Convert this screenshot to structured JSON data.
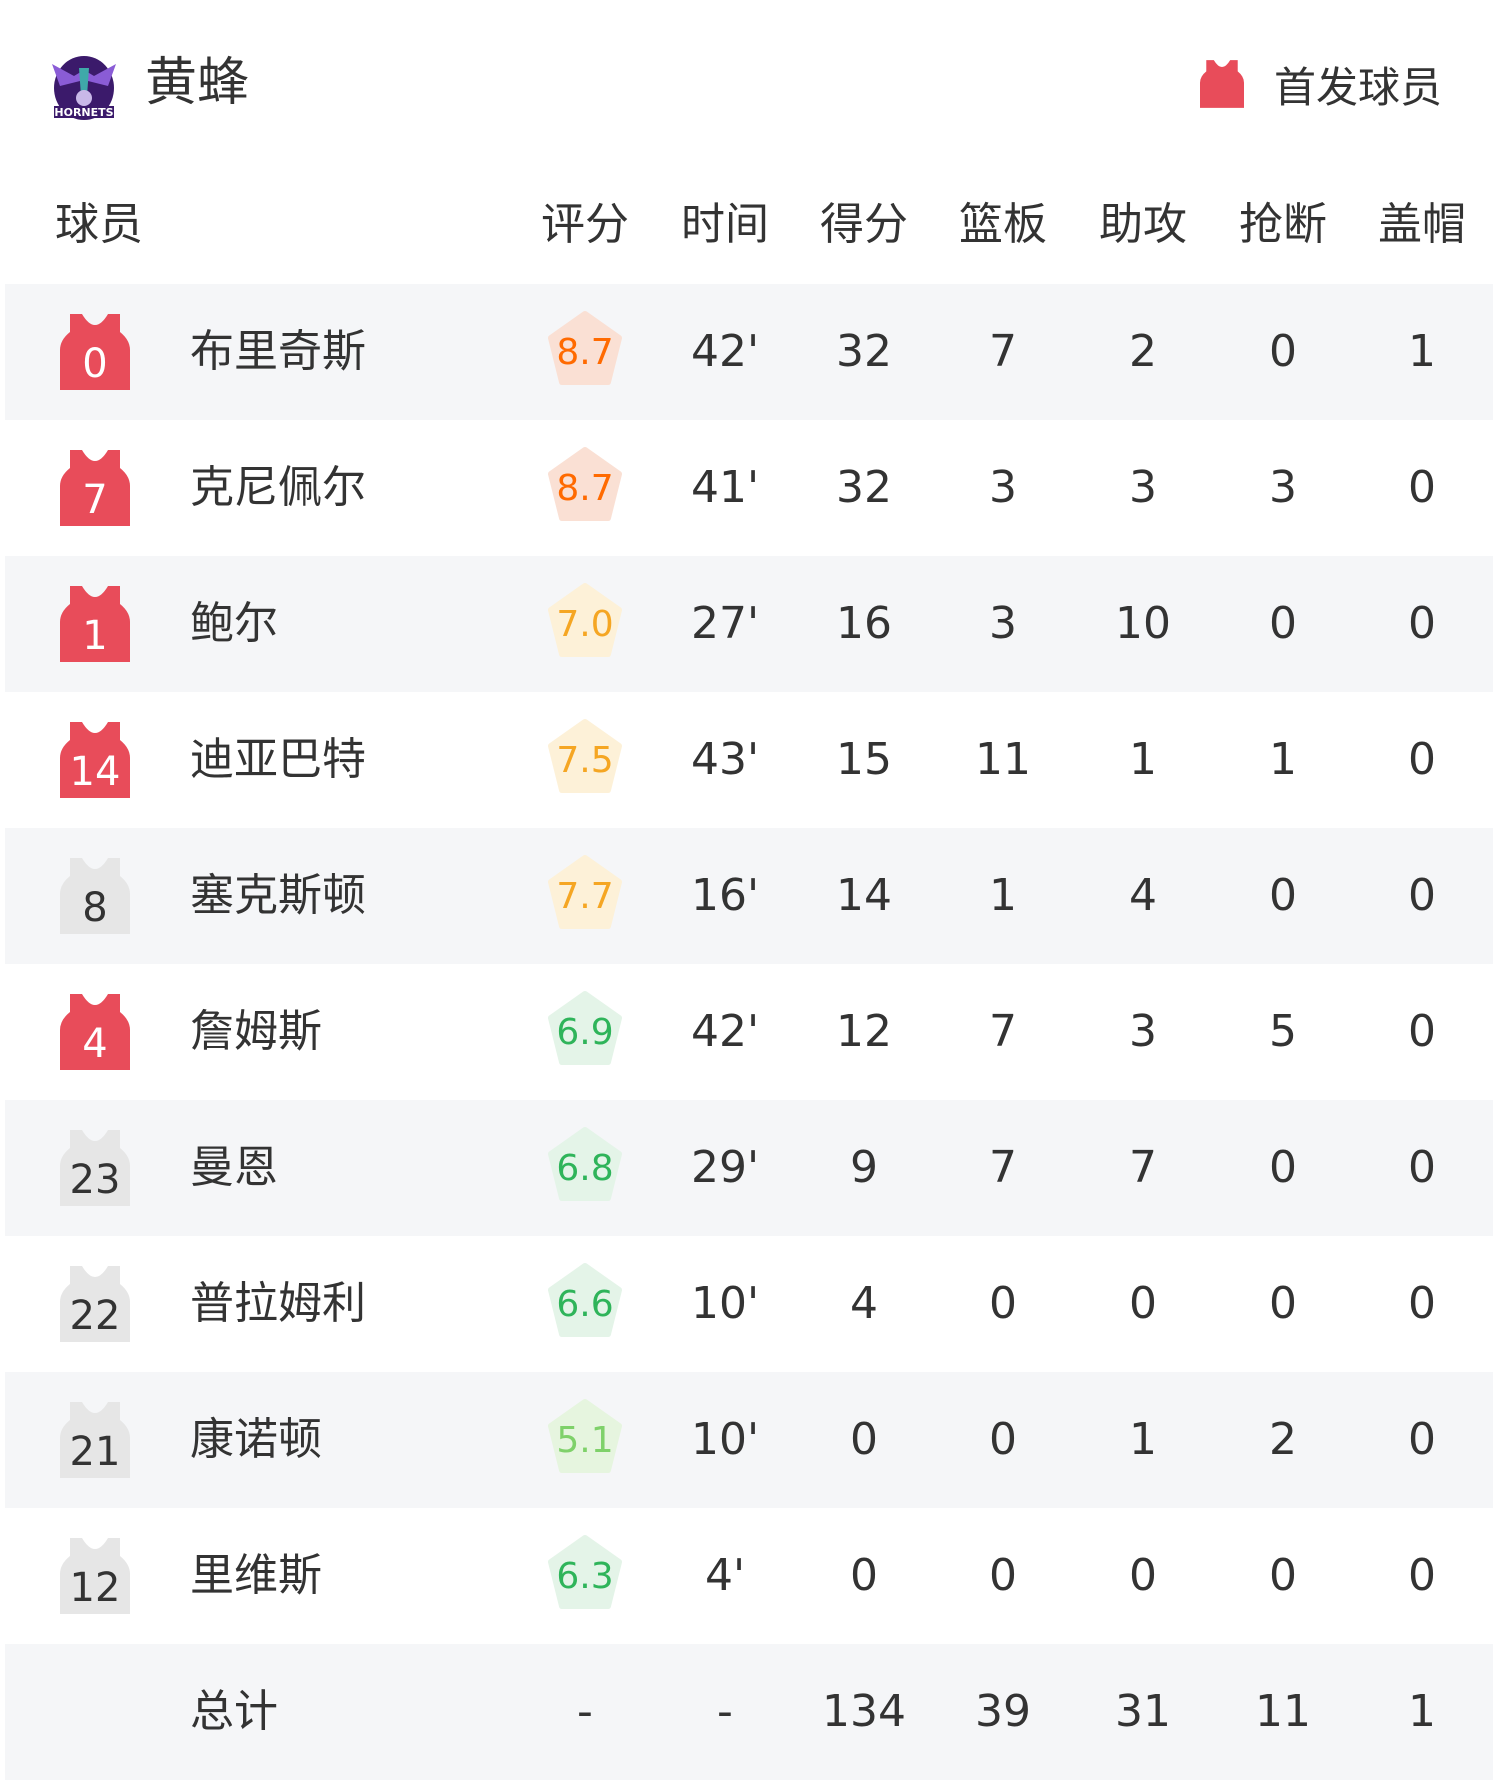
{
  "team": {
    "name": "黄蜂",
    "logo_text": "HORNETS"
  },
  "legend": {
    "label": "首发球员",
    "color": "#e84c5a"
  },
  "columns": [
    "球员",
    "评分",
    "时间",
    "得分",
    "篮板",
    "助攻",
    "抢断",
    "盖帽"
  ],
  "colors": {
    "starter": "#e84c5a",
    "bench": "#e6e6e6"
  },
  "players": [
    {
      "number": "0",
      "name": "布里奇斯",
      "starter": true,
      "rating": "8.7",
      "tier": "orange",
      "min": "42'",
      "pts": "32",
      "reb": "7",
      "ast": "2",
      "stl": "0",
      "blk": "1"
    },
    {
      "number": "7",
      "name": "克尼佩尔",
      "starter": true,
      "rating": "8.7",
      "tier": "orange",
      "min": "41'",
      "pts": "32",
      "reb": "3",
      "ast": "3",
      "stl": "3",
      "blk": "0"
    },
    {
      "number": "1",
      "name": "鲍尔",
      "starter": true,
      "rating": "7.0",
      "tier": "yellow",
      "min": "27'",
      "pts": "16",
      "reb": "3",
      "ast": "10",
      "stl": "0",
      "blk": "0"
    },
    {
      "number": "14",
      "name": "迪亚巴特",
      "starter": true,
      "rating": "7.5",
      "tier": "yellow",
      "min": "43'",
      "pts": "15",
      "reb": "11",
      "ast": "1",
      "stl": "1",
      "blk": "0"
    },
    {
      "number": "8",
      "name": "塞克斯顿",
      "starter": false,
      "rating": "7.7",
      "tier": "yellow",
      "min": "16'",
      "pts": "14",
      "reb": "1",
      "ast": "4",
      "stl": "0",
      "blk": "0"
    },
    {
      "number": "4",
      "name": "詹姆斯",
      "starter": true,
      "rating": "6.9",
      "tier": "green",
      "min": "42'",
      "pts": "12",
      "reb": "7",
      "ast": "3",
      "stl": "5",
      "blk": "0"
    },
    {
      "number": "23",
      "name": "曼恩",
      "starter": false,
      "rating": "6.8",
      "tier": "green",
      "min": "29'",
      "pts": "9",
      "reb": "7",
      "ast": "7",
      "stl": "0",
      "blk": "0"
    },
    {
      "number": "22",
      "name": "普拉姆利",
      "starter": false,
      "rating": "6.6",
      "tier": "green",
      "min": "10'",
      "pts": "4",
      "reb": "0",
      "ast": "0",
      "stl": "0",
      "blk": "0"
    },
    {
      "number": "21",
      "name": "康诺顿",
      "starter": false,
      "rating": "5.1",
      "tier": "lightgreen",
      "min": "10'",
      "pts": "0",
      "reb": "0",
      "ast": "1",
      "stl": "2",
      "blk": "0"
    },
    {
      "number": "12",
      "name": "里维斯",
      "starter": false,
      "rating": "6.3",
      "tier": "green",
      "min": "4'",
      "pts": "0",
      "reb": "0",
      "ast": "0",
      "stl": "0",
      "blk": "0"
    }
  ],
  "totals": {
    "label": "总计",
    "rating": "-",
    "min": "-",
    "pts": "134",
    "reb": "39",
    "ast": "31",
    "stl": "11",
    "blk": "1"
  },
  "tiers": {
    "orange": {
      "text": "#ff6a00",
      "bg": "#fae0d4"
    },
    "yellow": {
      "text": "#f5a623",
      "bg": "#fdf1d8"
    },
    "green": {
      "text": "#2fb45a",
      "bg": "#e4f4e8"
    },
    "lightgreen": {
      "text": "#7fd16a",
      "bg": "#e6f5df"
    }
  }
}
